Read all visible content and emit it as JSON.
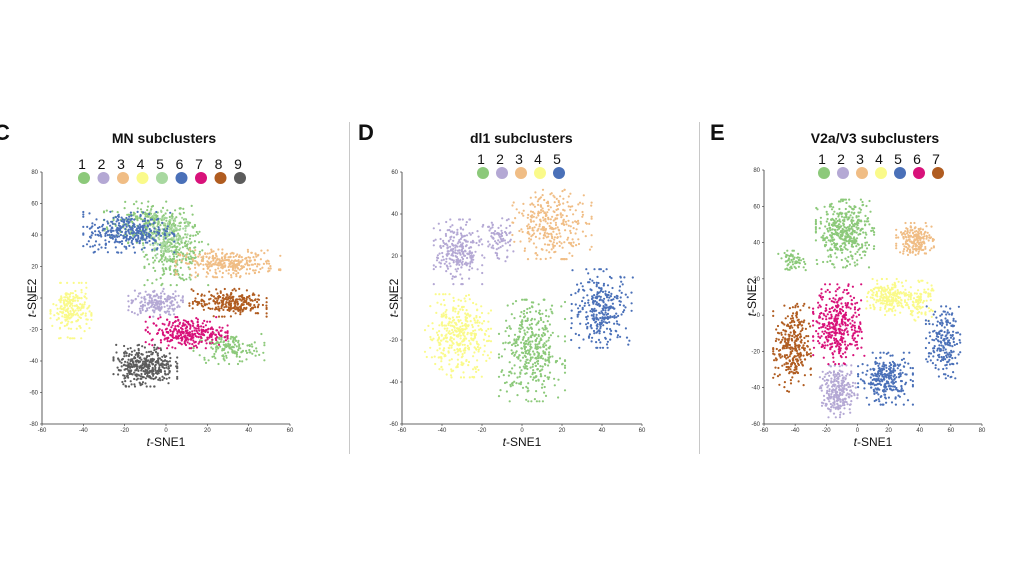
{
  "panels": [
    {
      "letter": "C",
      "title": "MN subclusters",
      "chart_data": {
        "type": "scatter",
        "title": "MN subclusters",
        "xlabel_italic": "t",
        "xlabel_rest": "-SNE1",
        "ylabel_italic": "t",
        "ylabel_rest": "-SNE2",
        "xlim": [
          -60,
          60
        ],
        "ylim": [
          -80,
          80
        ],
        "xticks": [
          -60,
          -40,
          -20,
          0,
          20,
          40,
          60
        ],
        "yticks": [
          -80,
          -60,
          -40,
          -20,
          0,
          20,
          40,
          60,
          80
        ],
        "legend_position": "top",
        "series": [
          {
            "name": "1",
            "color": "#8cc97a",
            "clusters": [
              {
                "cx": -8,
                "cy": 48,
                "rx": 20,
                "ry": 12,
                "n": 250
              },
              {
                "cx": 5,
                "cy": 28,
                "rx": 14,
                "ry": 18,
                "n": 250
              },
              {
                "cx": 30,
                "cy": -32,
                "rx": 16,
                "ry": 9,
                "n": 150
              }
            ]
          },
          {
            "name": "2",
            "color": "#b4a8d4",
            "clusters": [
              {
                "cx": -5,
                "cy": -3,
                "rx": 12,
                "ry": 8,
                "n": 180
              }
            ]
          },
          {
            "name": "3",
            "color": "#f0bd85",
            "clusters": [
              {
                "cx": 30,
                "cy": 22,
                "rx": 23,
                "ry": 8,
                "n": 300
              }
            ]
          },
          {
            "name": "4",
            "color": "#fafa8a",
            "clusters": [
              {
                "cx": -46,
                "cy": -8,
                "rx": 9,
                "ry": 16,
                "n": 220
              }
            ]
          },
          {
            "name": "5",
            "color": "#a8d8a0",
            "clusters": [
              {
                "cx": 0,
                "cy": 40,
                "rx": 10,
                "ry": 14,
                "n": 150
              }
            ]
          },
          {
            "name": "6",
            "color": "#4a70b8",
            "clusters": [
              {
                "cx": -18,
                "cy": 42,
                "rx": 20,
                "ry": 12,
                "n": 350
              }
            ]
          },
          {
            "name": "7",
            "color": "#d8127a",
            "clusters": [
              {
                "cx": 10,
                "cy": -22,
                "rx": 18,
                "ry": 9,
                "n": 300
              }
            ]
          },
          {
            "name": "8",
            "color": "#b05c20",
            "clusters": [
              {
                "cx": 30,
                "cy": -3,
                "rx": 17,
                "ry": 8,
                "n": 260
              }
            ]
          },
          {
            "name": "9",
            "color": "#5c5c5c",
            "clusters": [
              {
                "cx": -10,
                "cy": -43,
                "rx": 14,
                "ry": 12,
                "n": 380
              }
            ]
          }
        ]
      }
    },
    {
      "letter": "D",
      "title": "dl1 subclusters",
      "chart_data": {
        "type": "scatter",
        "title": "dl1 subclusters",
        "xlabel_italic": "t",
        "xlabel_rest": "-SNE1",
        "ylabel_italic": "t",
        "ylabel_rest": "-SNE2",
        "xlim": [
          -60,
          60
        ],
        "ylim": [
          -60,
          60
        ],
        "xticks": [
          -60,
          -40,
          -20,
          0,
          20,
          40,
          60
        ],
        "yticks": [
          -60,
          -40,
          -20,
          0,
          20,
          40,
          60
        ],
        "legend_position": "top",
        "series": [
          {
            "name": "1",
            "color": "#8cc97a",
            "clusters": [
              {
                "cx": 5,
                "cy": -25,
                "rx": 15,
                "ry": 22,
                "n": 400
              }
            ]
          },
          {
            "name": "2",
            "color": "#b4a8d4",
            "clusters": [
              {
                "cx": -32,
                "cy": 22,
                "rx": 11,
                "ry": 14,
                "n": 250
              },
              {
                "cx": -12,
                "cy": 28,
                "rx": 7,
                "ry": 10,
                "n": 80
              }
            ]
          },
          {
            "name": "3",
            "color": "#f0bd85",
            "clusters": [
              {
                "cx": 15,
                "cy": 35,
                "rx": 18,
                "ry": 15,
                "n": 300
              }
            ]
          },
          {
            "name": "4",
            "color": "#fafa8a",
            "clusters": [
              {
                "cx": -32,
                "cy": -18,
                "rx": 15,
                "ry": 18,
                "n": 380
              }
            ]
          },
          {
            "name": "5",
            "color": "#4a70b8",
            "clusters": [
              {
                "cx": 40,
                "cy": -5,
                "rx": 14,
                "ry": 17,
                "n": 300
              }
            ]
          }
        ]
      }
    },
    {
      "letter": "E",
      "title": "V2a/V3 subclusters",
      "chart_data": {
        "type": "scatter",
        "title": "V2a/V3 subclusters",
        "xlabel_italic": "t",
        "xlabel_rest": "-SNE1",
        "ylabel_italic": "t",
        "ylabel_rest": "-SNE2",
        "xlim": [
          -60,
          80
        ],
        "ylim": [
          -60,
          80
        ],
        "xticks": [
          -60,
          -40,
          -20,
          0,
          20,
          40,
          60,
          80
        ],
        "yticks": [
          -60,
          -40,
          -20,
          0,
          20,
          40,
          60,
          80
        ],
        "legend_position": "top",
        "series": [
          {
            "name": "1",
            "color": "#8cc97a",
            "clusters": [
              {
                "cx": -8,
                "cy": 45,
                "rx": 17,
                "ry": 17,
                "n": 420
              },
              {
                "cx": -42,
                "cy": 30,
                "rx": 8,
                "ry": 5,
                "n": 60
              }
            ]
          },
          {
            "name": "2",
            "color": "#b4a8d4",
            "clusters": [
              {
                "cx": -12,
                "cy": -42,
                "rx": 11,
                "ry": 13,
                "n": 260
              }
            ]
          },
          {
            "name": "3",
            "color": "#f0bd85",
            "clusters": [
              {
                "cx": 37,
                "cy": 42,
                "rx": 11,
                "ry": 8,
                "n": 200
              }
            ]
          },
          {
            "name": "4",
            "color": "#fafa8a",
            "clusters": [
              {
                "cx": 20,
                "cy": 10,
                "rx": 13,
                "ry": 9,
                "n": 220
              },
              {
                "cx": 40,
                "cy": 8,
                "rx": 8,
                "ry": 10,
                "n": 100
              }
            ]
          },
          {
            "name": "5",
            "color": "#4a70b8",
            "clusters": [
              {
                "cx": 18,
                "cy": -35,
                "rx": 16,
                "ry": 13,
                "n": 280
              },
              {
                "cx": 55,
                "cy": -15,
                "rx": 10,
                "ry": 18,
                "n": 200
              }
            ]
          },
          {
            "name": "6",
            "color": "#d8127a",
            "clusters": [
              {
                "cx": -12,
                "cy": -5,
                "rx": 15,
                "ry": 20,
                "n": 380
              }
            ]
          },
          {
            "name": "7",
            "color": "#b05c20",
            "clusters": [
              {
                "cx": -42,
                "cy": -18,
                "rx": 11,
                "ry": 22,
                "n": 300
              }
            ]
          }
        ]
      }
    }
  ]
}
